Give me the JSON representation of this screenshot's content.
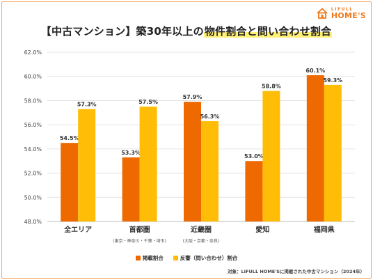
{
  "brand": {
    "small": "LIFULL",
    "big": "HOME'S"
  },
  "title_prefix": "【中古マンション】築30年以上の",
  "title_highlight": "物件割合と問い合わせ割合",
  "legend": [
    {
      "label": "掲載割合",
      "color": "#ee6a00"
    },
    {
      "label": "反響（問い合わせ）割合",
      "color": "#ffbd08"
    }
  ],
  "note": "対象：LIFULL HOME'Sに掲載された中古マンション（2024年）",
  "chart_data": {
    "type": "bar",
    "categories": [
      "全エリア",
      "首都圏",
      "近畿圏",
      "愛知",
      "福岡県"
    ],
    "sublabels": [
      "",
      "(東京・神奈川・千葉・埼玉)",
      "(大阪・京都・奈良)",
      "",
      ""
    ],
    "series": [
      {
        "name": "掲載割合",
        "color": "#ee6a00",
        "values": [
          54.5,
          53.3,
          57.9,
          53.0,
          60.1
        ],
        "labels": [
          "54.5%",
          "53.3%",
          "57.9%",
          "53.0%",
          "60.1%"
        ]
      },
      {
        "name": "反響（問い合わせ）割合",
        "color": "#ffbd08",
        "values": [
          57.3,
          57.5,
          56.3,
          58.8,
          59.3
        ],
        "labels": [
          "57.3%",
          "57.5%",
          "56.3%",
          "58.8%",
          "59.3%"
        ]
      }
    ],
    "ylim": [
      48.0,
      62.0
    ],
    "yticks": [
      "48.0%",
      "50.0%",
      "52.0%",
      "54.0%",
      "56.0%",
      "58.0%",
      "60.0%",
      "62.0%"
    ],
    "ytick_values": [
      48,
      50,
      52,
      54,
      56,
      58,
      60,
      62
    ],
    "grid": true,
    "legend_position": "bottom"
  }
}
